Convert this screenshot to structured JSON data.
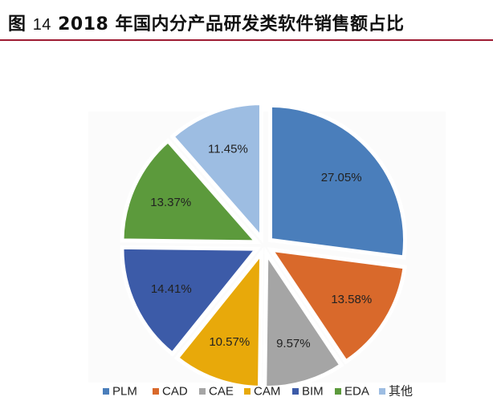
{
  "figure": {
    "label": "图",
    "number": "14",
    "title": "2018 年国内分产品研发类软件销售额占比"
  },
  "chart_data": {
    "type": "pie",
    "title": "",
    "legend_position": "bottom",
    "categories": [
      "PLM",
      "CAD",
      "CAE",
      "CAM",
      "BIM",
      "EDA",
      "其他"
    ],
    "values": [
      27.05,
      13.58,
      9.57,
      10.57,
      14.41,
      13.37,
      11.45
    ],
    "labels": [
      "27.05%",
      "13.58%",
      "9.57%",
      "10.57%",
      "14.41%",
      "13.37%",
      "11.45%"
    ],
    "colors": [
      "#4a7ebb",
      "#d9692b",
      "#a5a5a5",
      "#e8a90a",
      "#3c5ba8",
      "#5c9a3c",
      "#9dbde2"
    ],
    "exploded": true
  }
}
